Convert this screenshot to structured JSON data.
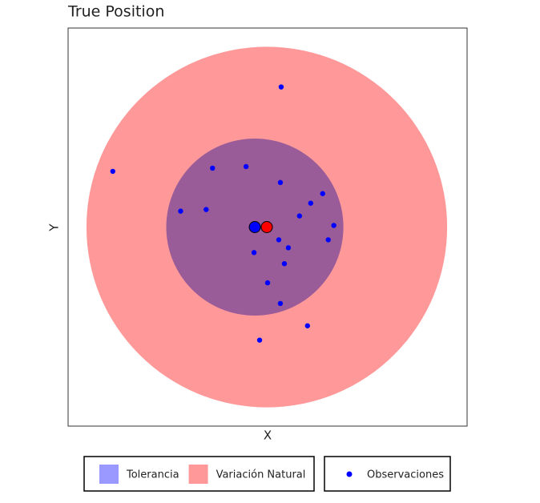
{
  "chart_data": {
    "type": "scatter",
    "title": "True Position",
    "x_label": "X",
    "y_label": "Y",
    "xlim": [
      -250,
      250
    ],
    "ylim": [
      -250,
      250
    ],
    "circles": [
      {
        "name": "Variación Natural",
        "color": "#ff9999",
        "x": -1,
        "y": 0,
        "radius": 226
      },
      {
        "name": "Tolerancia",
        "color": "#9999ff",
        "x": -16,
        "y": 0,
        "radius": 111
      }
    ],
    "series": [
      {
        "name": "Observaciones",
        "color": "#0000ff",
        "x": [
          17,
          -194,
          -69,
          -27,
          16,
          69,
          54,
          -109,
          -77,
          40,
          83,
          14,
          76,
          26,
          -17,
          21,
          0,
          16,
          50,
          -10
        ],
        "y": [
          176,
          70,
          74,
          76,
          56,
          42,
          30,
          20,
          22,
          14,
          2,
          -16,
          -16,
          -26,
          -32,
          -46,
          -70,
          -96,
          -124,
          -142
        ]
      }
    ],
    "points": [
      {
        "color": "#0000ff",
        "x": -16,
        "y": 0
      },
      {
        "color": "#ff0000",
        "x": -1,
        "y": 0
      }
    ]
  }
}
